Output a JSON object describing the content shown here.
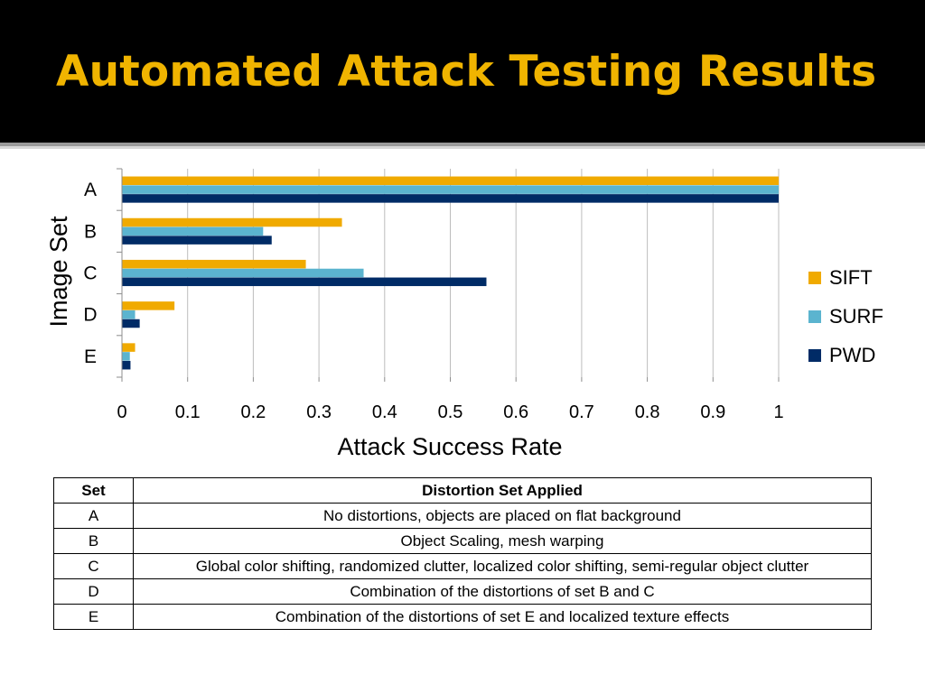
{
  "slide": {
    "title": "Automated Attack Testing Results"
  },
  "colors": {
    "header_bg": "#000000",
    "title": "#f0b400",
    "SIFT": "#f0aa00",
    "SURF": "#5bb4cf",
    "PWD": "#002b66"
  },
  "chart_data": {
    "type": "bar",
    "orientation": "horizontal",
    "categories": [
      "A",
      "B",
      "C",
      "D",
      "E"
    ],
    "series": [
      {
        "name": "SIFT",
        "values": [
          1.0,
          0.335,
          0.28,
          0.08,
          0.02
        ]
      },
      {
        "name": "SURF",
        "values": [
          1.0,
          0.215,
          0.368,
          0.02,
          0.012
        ]
      },
      {
        "name": "PWD",
        "values": [
          1.0,
          0.228,
          0.555,
          0.027,
          0.013
        ]
      }
    ],
    "xlabel": "Attack Success Rate",
    "ylabel": "Image Set",
    "xlim": [
      0,
      1
    ],
    "xticks": [
      "0",
      "0.1",
      "0.2",
      "0.3",
      "0.4",
      "0.5",
      "0.6",
      "0.7",
      "0.8",
      "0.9",
      "1"
    ],
    "grid": "vertical",
    "legend": "right"
  },
  "table": {
    "headers": [
      "Set",
      "Distortion Set Applied"
    ],
    "rows": [
      [
        "A",
        "No distortions, objects are placed on flat background"
      ],
      [
        "B",
        "Object Scaling, mesh warping"
      ],
      [
        "C",
        "Global color shifting, randomized clutter, localized color shifting, semi-regular object clutter"
      ],
      [
        "D",
        "Combination of the distortions of set B and C"
      ],
      [
        "E",
        "Combination of the distortions of set E and localized texture effects"
      ]
    ]
  }
}
